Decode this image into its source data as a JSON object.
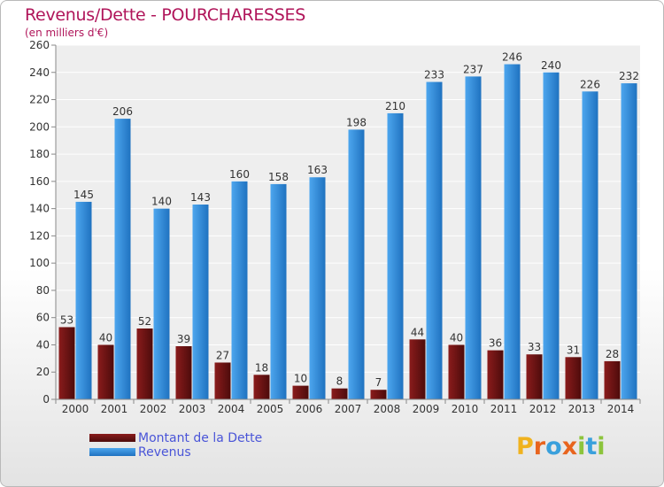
{
  "header": {
    "title": "Revenus/Dette - POURCHARESSES",
    "subtitle": "(en milliers d'€)"
  },
  "logo": {
    "letters": [
      "P",
      "r",
      "o",
      "x",
      "i",
      "t",
      "i"
    ],
    "colors": [
      "#f0b21e",
      "#e8641e",
      "#3aa0dc",
      "#e8641e",
      "#8cc43c",
      "#3aa0dc",
      "#8cc43c"
    ]
  },
  "colors": {
    "dette": "#6b1414",
    "revenus": "#2f8ad8",
    "axis": "#888888",
    "grid": "#ffffff",
    "plot_bg": "#eeeeee"
  },
  "chart_data": {
    "type": "bar",
    "title": "Revenus/Dette - POURCHARESSES",
    "subtitle": "(en milliers d'€)",
    "categories": [
      "2000",
      "2001",
      "2002",
      "2003",
      "2004",
      "2005",
      "2006",
      "2007",
      "2008",
      "2009",
      "2010",
      "2011",
      "2012",
      "2013",
      "2014"
    ],
    "series": [
      {
        "name": "Montant de la Dette",
        "values": [
          53,
          40,
          52,
          39,
          27,
          18,
          10,
          8,
          7,
          44,
          40,
          36,
          33,
          31,
          28
        ]
      },
      {
        "name": "Revenus",
        "values": [
          145,
          206,
          140,
          143,
          160,
          158,
          163,
          198,
          210,
          233,
          237,
          246,
          240,
          226,
          232
        ]
      }
    ],
    "ylim": [
      0,
      260
    ],
    "ytick_step": 20,
    "grid": true,
    "legend": "bottom-left"
  }
}
